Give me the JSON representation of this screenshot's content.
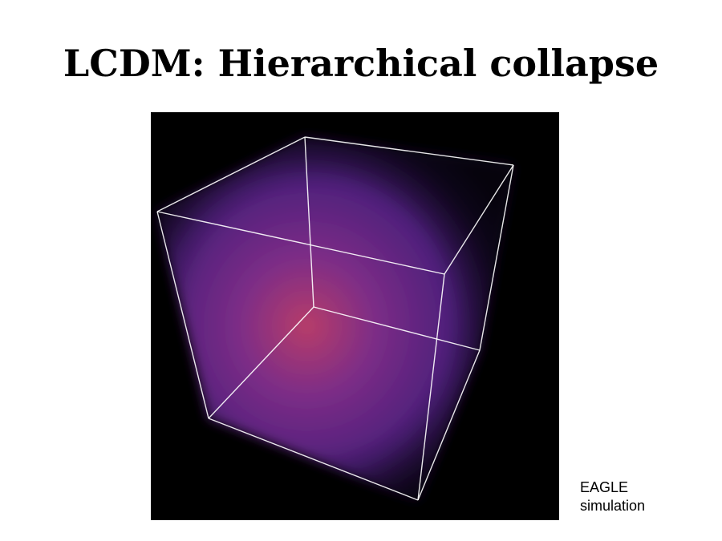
{
  "slide": {
    "title": "LCDM: Hierarchical collapse",
    "caption_line1": "EAGLE",
    "caption_line2": "simulation"
  },
  "image": {
    "subject": "simulation-cube",
    "background_color": "#000000",
    "edge_color": "#ffffff",
    "glow_inner_color": "#c2406e",
    "glow_mid_color": "#6a2a9a",
    "glow_outer_color": "#2a1050"
  }
}
